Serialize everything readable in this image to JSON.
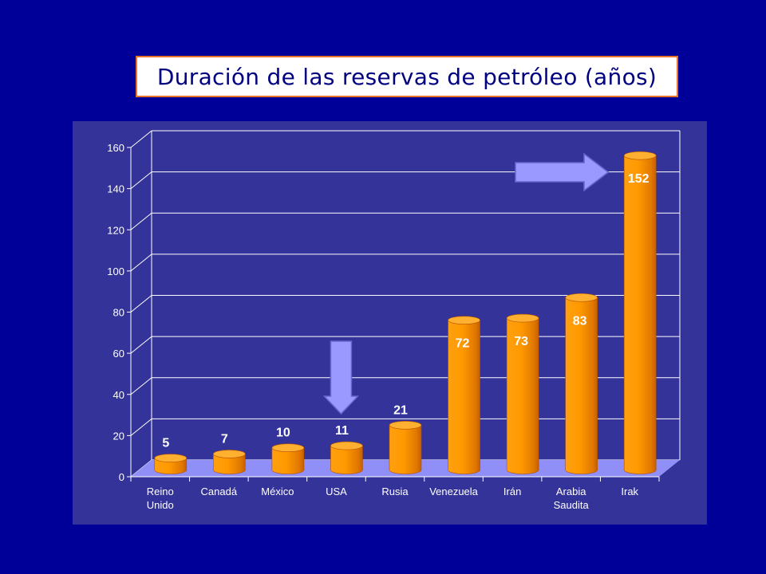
{
  "title": "Duración de las reservas de petróleo (años)",
  "colors": {
    "background": "#000099",
    "panel": "#333399",
    "plot_floor": "#8f8ff7",
    "bar": "#ff9900",
    "bar_dark": "#c85e00",
    "bar_top": "#ffb030",
    "arrow": "#9999ff",
    "title_border": "#e8732a",
    "title_text": "#000080"
  },
  "chart_data": {
    "type": "bar",
    "title": "Duración de las reservas de petróleo (años)",
    "categories": [
      "Reino Unido",
      "Canadá",
      "México",
      "USA",
      "Rusia",
      "Venezuela",
      "Irán",
      "Arabia Saudita",
      "Irak"
    ],
    "category_lines": [
      [
        "Reino",
        "Unido"
      ],
      [
        "Canadá"
      ],
      [
        "México"
      ],
      [
        "USA"
      ],
      [
        "Rusia"
      ],
      [
        "Venezuela"
      ],
      [
        "Irán"
      ],
      [
        "Arabia",
        "Saudita"
      ],
      [
        "Irak"
      ]
    ],
    "values": [
      5,
      7,
      10,
      11,
      21,
      72,
      73,
      83,
      152
    ],
    "value_labels": [
      "5",
      "7",
      "10",
      "11",
      "21",
      "72",
      "73",
      "83",
      "152"
    ],
    "yticks": [
      0,
      20,
      40,
      60,
      80,
      100,
      120,
      140,
      160
    ],
    "ylim": [
      0,
      160
    ],
    "grid": true,
    "annotations": [
      {
        "type": "arrow-down",
        "category": "USA"
      },
      {
        "type": "arrow-right",
        "category": "Irak"
      }
    ]
  }
}
